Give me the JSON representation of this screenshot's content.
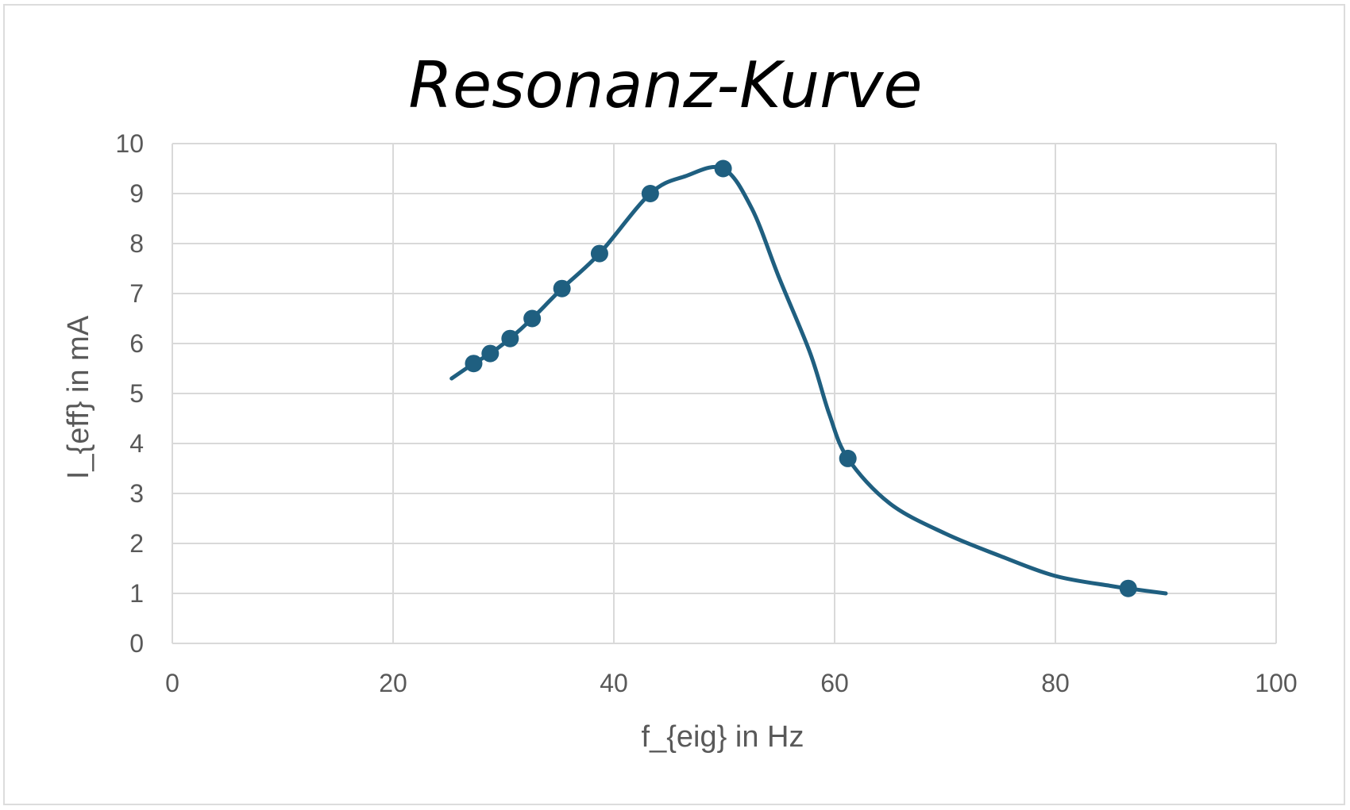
{
  "chart_data": {
    "type": "scatter",
    "title": "Resonanz-Kurve",
    "xlabel": "f_{eig} in Hz",
    "ylabel": "I_{eff} in mA",
    "xlim": [
      0,
      100
    ],
    "ylim": [
      0,
      10
    ],
    "x_ticks": [
      0,
      20,
      40,
      60,
      80,
      100
    ],
    "y_ticks": [
      0,
      1,
      2,
      3,
      4,
      5,
      6,
      7,
      8,
      9,
      10
    ],
    "grid": true,
    "legend": "none",
    "series": [
      {
        "points": [
          {
            "x": 27.3,
            "y": 5.6
          },
          {
            "x": 28.8,
            "y": 5.8
          },
          {
            "x": 30.6,
            "y": 6.1
          },
          {
            "x": 32.6,
            "y": 6.5
          },
          {
            "x": 35.3,
            "y": 7.1
          },
          {
            "x": 38.7,
            "y": 7.8
          },
          {
            "x": 43.3,
            "y": 9.0
          },
          {
            "x": 49.9,
            "y": 9.5
          },
          {
            "x": 61.2,
            "y": 3.7
          },
          {
            "x": 86.6,
            "y": 1.1
          }
        ],
        "color": "#1f5f80"
      }
    ],
    "curve": {
      "color": "#1f5f80",
      "points": [
        {
          "x": 25.3,
          "y": 5.3
        },
        {
          "x": 27.3,
          "y": 5.6
        },
        {
          "x": 28.8,
          "y": 5.8
        },
        {
          "x": 30.6,
          "y": 6.1
        },
        {
          "x": 32.6,
          "y": 6.5
        },
        {
          "x": 35.3,
          "y": 7.1
        },
        {
          "x": 38.7,
          "y": 7.8
        },
        {
          "x": 43.3,
          "y": 9.0
        },
        {
          "x": 46.5,
          "y": 9.35
        },
        {
          "x": 49.9,
          "y": 9.5
        },
        {
          "x": 52.5,
          "y": 8.7
        },
        {
          "x": 55.0,
          "y": 7.3
        },
        {
          "x": 57.8,
          "y": 5.8
        },
        {
          "x": 59.5,
          "y": 4.6
        },
        {
          "x": 61.2,
          "y": 3.7
        },
        {
          "x": 65.0,
          "y": 2.8
        },
        {
          "x": 70.0,
          "y": 2.2
        },
        {
          "x": 75.0,
          "y": 1.75
        },
        {
          "x": 80.0,
          "y": 1.35
        },
        {
          "x": 85.0,
          "y": 1.15
        },
        {
          "x": 86.6,
          "y": 1.1
        },
        {
          "x": 90.0,
          "y": 1.0
        }
      ]
    }
  }
}
